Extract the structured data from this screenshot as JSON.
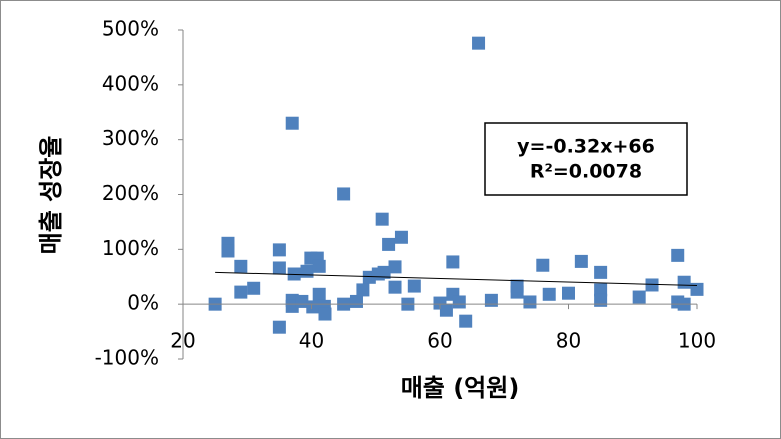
{
  "chart_data": {
    "type": "scatter",
    "x_label": "매출 (억원)",
    "y_label": "매출 성장율",
    "xlim": [
      20,
      100
    ],
    "xticks": [
      20,
      40,
      60,
      80,
      100
    ],
    "ylim": [
      -100,
      500
    ],
    "yticks": [
      {
        "value": -100,
        "label": "-100%"
      },
      {
        "value": 0,
        "label": "0%"
      },
      {
        "value": 100,
        "label": "100%"
      },
      {
        "value": 200,
        "label": "200%"
      },
      {
        "value": 300,
        "label": "300%"
      },
      {
        "value": 400,
        "label": "400%"
      },
      {
        "value": 500,
        "label": "500%"
      }
    ],
    "grid": false,
    "color": "#4f81bd",
    "x": [
      25,
      27,
      27,
      29,
      29,
      31,
      35,
      35,
      35,
      37,
      37,
      37,
      37.3,
      38.5,
      39.3,
      39.9,
      40.2,
      40.9,
      41.2,
      41.2,
      42,
      42.1,
      45,
      45,
      47,
      48,
      49,
      50.4,
      51,
      51.3,
      52,
      53,
      53,
      54,
      55,
      56,
      60,
      61,
      62,
      62,
      63,
      64,
      66,
      68,
      72,
      72,
      74,
      76,
      77,
      80,
      82,
      85,
      85,
      85,
      91,
      93,
      97,
      97,
      98,
      98,
      100
    ],
    "values": [
      0,
      111,
      97,
      69,
      22,
      29,
      99,
      66,
      -42,
      330,
      7,
      -4,
      55,
      5,
      60,
      84,
      -5,
      84,
      69,
      18,
      -4,
      -18,
      201,
      0,
      5,
      26,
      49,
      55,
      155,
      58,
      109,
      68,
      31,
      122,
      0,
      33,
      2,
      -11,
      77,
      18,
      4,
      -31,
      476,
      7,
      22,
      33,
      4,
      71,
      18,
      20,
      78,
      58,
      26,
      7,
      13,
      35,
      89,
      4,
      40,
      0,
      27
    ],
    "trendline": {
      "equation": "y=-0.32x+66",
      "r2_label": "R²=0.0078",
      "slope": -0.32,
      "intercept": 66
    }
  }
}
